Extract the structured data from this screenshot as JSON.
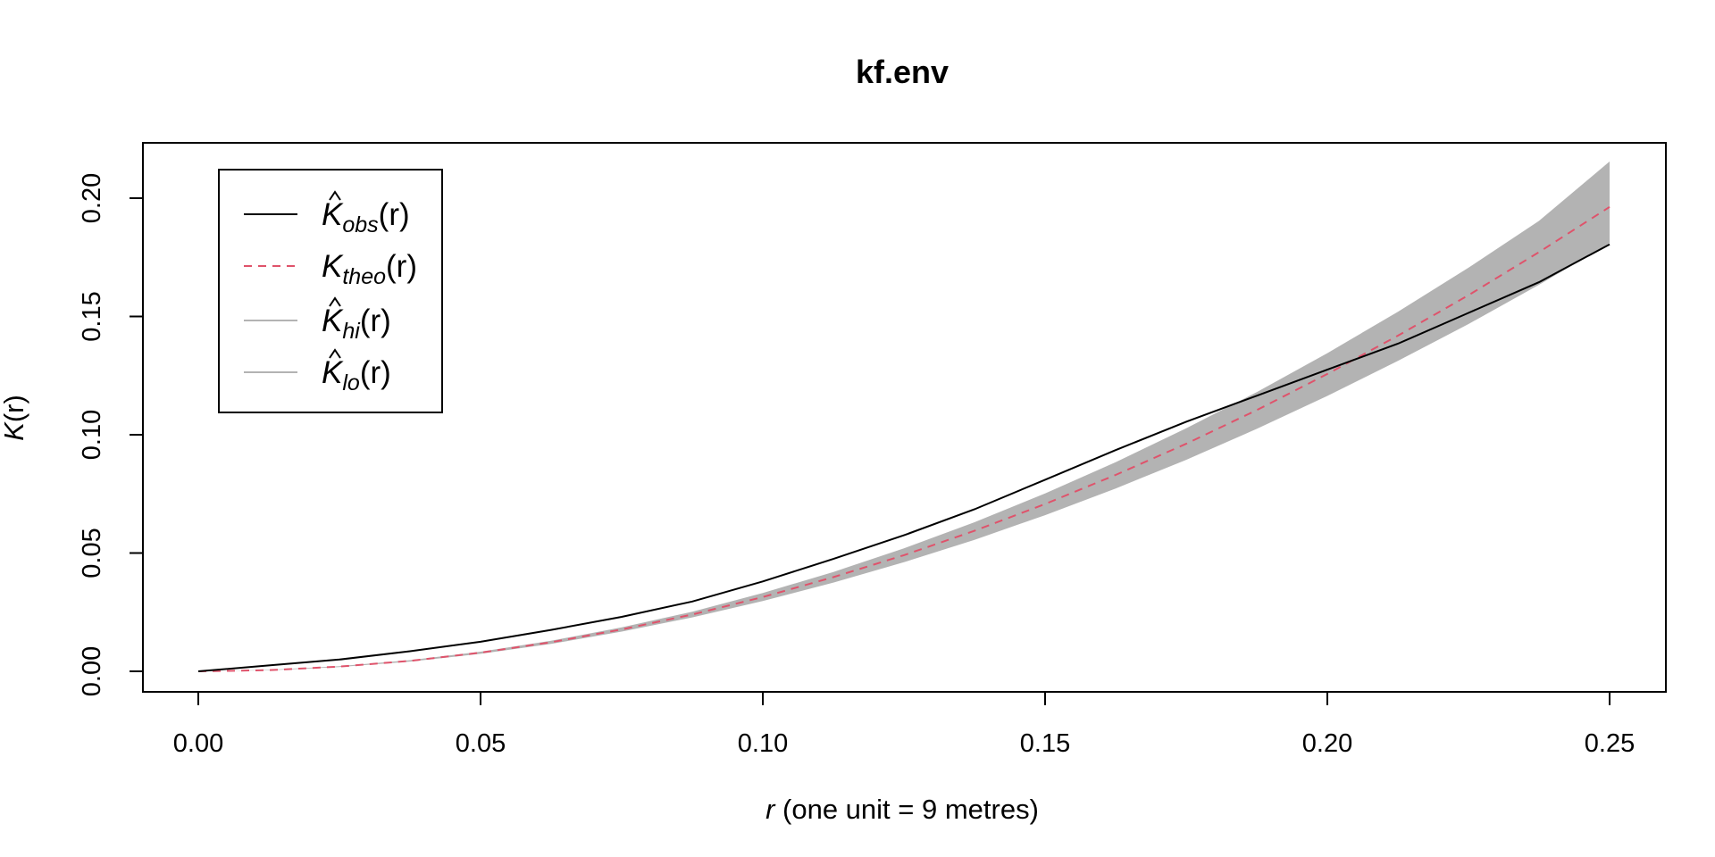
{
  "chart_data": {
    "type": "line",
    "title": "kf.env",
    "xlabel_var": "r",
    "xlabel_rest": " (one unit = 9 metres)",
    "ylabel_fn": "K",
    "ylabel_arg": "(r)",
    "xlim": [
      0,
      0.25
    ],
    "ylim": [
      0,
      0.2
    ],
    "x_ticks": [
      "0.00",
      "0.05",
      "0.10",
      "0.15",
      "0.20",
      "0.25"
    ],
    "y_ticks": [
      "0.00",
      "0.05",
      "0.10",
      "0.15",
      "0.20"
    ],
    "x_tick_values": [
      0,
      0.05,
      0.1,
      0.15,
      0.2,
      0.25
    ],
    "y_tick_values": [
      0,
      0.05,
      0.1,
      0.15,
      0.2
    ],
    "legend_position": "top-left",
    "grid": false,
    "colors": {
      "obs": "#000000",
      "theo": "#DF536B",
      "band": "#B3B3B3",
      "legend_gray": "#B3B3B3"
    },
    "legend": [
      {
        "symbol": "K",
        "hat": true,
        "sub": "obs",
        "arg": "(r)",
        "line": "solid",
        "color": "#000000"
      },
      {
        "symbol": "K",
        "hat": false,
        "sub": "theo",
        "arg": "(r)",
        "line": "dashed",
        "color": "#DF536B"
      },
      {
        "symbol": "K",
        "hat": true,
        "sub": "hi",
        "arg": "(r)",
        "line": "solid",
        "color": "#B3B3B3"
      },
      {
        "symbol": "K",
        "hat": true,
        "sub": "lo",
        "arg": "(r)",
        "line": "solid",
        "color": "#B3B3B3"
      }
    ],
    "series": [
      {
        "name": "obs",
        "x": [
          0,
          0.0125,
          0.025,
          0.0375,
          0.05,
          0.0625,
          0.075,
          0.0875,
          0.1,
          0.1125,
          0.125,
          0.1375,
          0.15,
          0.1625,
          0.175,
          0.1875,
          0.2,
          0.2125,
          0.225,
          0.2375,
          0.25
        ],
        "y": [
          0,
          0.0025,
          0.005,
          0.0085,
          0.0125,
          0.0175,
          0.023,
          0.0295,
          0.038,
          0.0475,
          0.0575,
          0.0685,
          0.081,
          0.0935,
          0.1055,
          0.1165,
          0.1275,
          0.1385,
          0.1515,
          0.1645,
          0.1805
        ]
      },
      {
        "name": "theo",
        "x": [
          0,
          0.0125,
          0.025,
          0.0375,
          0.05,
          0.0625,
          0.075,
          0.0875,
          0.1,
          0.1125,
          0.125,
          0.1375,
          0.15,
          0.1625,
          0.175,
          0.1875,
          0.2,
          0.2125,
          0.225,
          0.2375,
          0.25
        ],
        "y": [
          0,
          0.0005,
          0.002,
          0.0044,
          0.0079,
          0.0123,
          0.0177,
          0.024,
          0.0314,
          0.0398,
          0.0491,
          0.0594,
          0.0707,
          0.083,
          0.0962,
          0.1104,
          0.1257,
          0.1419,
          0.159,
          0.1772,
          0.1963
        ]
      },
      {
        "name": "hi",
        "x": [
          0,
          0.0125,
          0.025,
          0.0375,
          0.05,
          0.0625,
          0.075,
          0.0875,
          0.1,
          0.1125,
          0.125,
          0.1375,
          0.15,
          0.1625,
          0.175,
          0.1875,
          0.2,
          0.2125,
          0.225,
          0.2375,
          0.25
        ],
        "y": [
          0,
          0.0006,
          0.0022,
          0.0047,
          0.0083,
          0.0129,
          0.0186,
          0.0252,
          0.0331,
          0.042,
          0.052,
          0.063,
          0.0752,
          0.0884,
          0.1027,
          0.118,
          0.1345,
          0.152,
          0.1706,
          0.1904,
          0.2155
        ]
      },
      {
        "name": "lo",
        "x": [
          0,
          0.0125,
          0.025,
          0.0375,
          0.05,
          0.0625,
          0.075,
          0.0875,
          0.1,
          0.1125,
          0.125,
          0.1375,
          0.15,
          0.1625,
          0.175,
          0.1875,
          0.2,
          0.2125,
          0.225,
          0.2375,
          0.25
        ],
        "y": [
          0,
          0.0004,
          0.0018,
          0.0041,
          0.0074,
          0.0116,
          0.0168,
          0.0228,
          0.0297,
          0.0375,
          0.0461,
          0.0556,
          0.066,
          0.0773,
          0.0894,
          0.1025,
          0.1164,
          0.1312,
          0.1468,
          0.1634,
          0.181
        ]
      }
    ]
  }
}
